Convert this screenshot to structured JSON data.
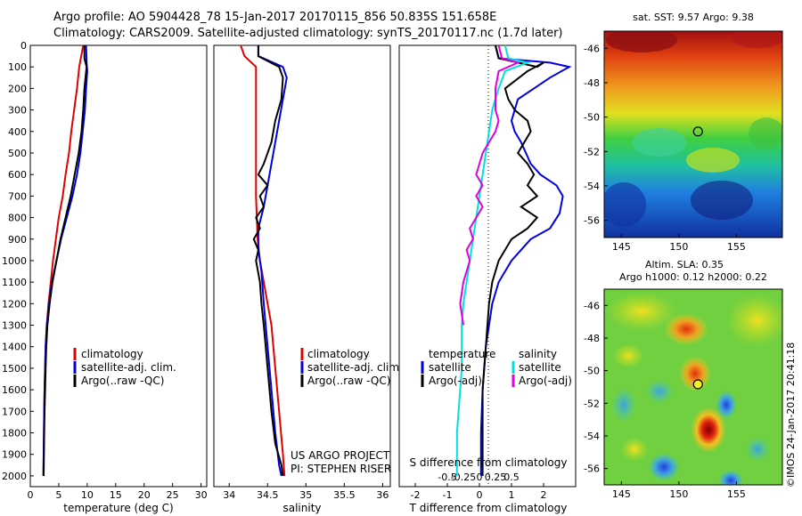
{
  "header": {
    "line1": "Argo profile: AO 5904428_78 15-Jan-2017 20170115_856 50.835S 151.658E",
    "line2": "Climatology: CARS2009. Satellite-adjusted climatology: synTS_20170117.nc (1.7d later)"
  },
  "footer": {
    "project": "US ARGO PROJECT",
    "pi": "PI: STEPHEN RISER",
    "stamp": "©IMOS 24-Jan-2017 20:41:18"
  },
  "colors": {
    "climatology": "#e00000",
    "satellite": "#0000e0",
    "argo": "#000000",
    "salinity_diff": "#00e0e0",
    "salinity_argo": "#e000e0"
  },
  "chart_data": [
    {
      "id": "temp",
      "type": "line",
      "xlabel": "temperature (deg C)",
      "ylabel": "",
      "xlim": [
        0,
        31
      ],
      "ylim": [
        0,
        2050
      ],
      "y_reversed": true,
      "xticks": [
        0,
        5,
        10,
        15,
        20,
        25,
        30
      ],
      "yticks": [
        0,
        100,
        200,
        300,
        400,
        500,
        600,
        700,
        800,
        900,
        1000,
        1100,
        1200,
        1300,
        1400,
        1500,
        1600,
        1700,
        1800,
        1900,
        2000
      ],
      "legend": {
        "placement": "center-left",
        "entries": [
          "climatology",
          "satellite-adj. clim.",
          "Argo(..raw -QC)"
        ]
      },
      "series": [
        {
          "name": "climatology",
          "color": "#e00000",
          "points": [
            [
              9.3,
              0
            ],
            [
              8.6,
              100
            ],
            [
              8.2,
              200
            ],
            [
              7.7,
              300
            ],
            [
              7.2,
              400
            ],
            [
              6.8,
              500
            ],
            [
              6.2,
              600
            ],
            [
              5.7,
              700
            ],
            [
              5.0,
              800
            ],
            [
              4.5,
              900
            ],
            [
              4.0,
              1000
            ],
            [
              3.6,
              1100
            ],
            [
              3.2,
              1200
            ],
            [
              2.9,
              1300
            ],
            [
              2.7,
              1400
            ],
            [
              2.6,
              1500
            ],
            [
              2.5,
              1600
            ],
            [
              2.45,
              1700
            ],
            [
              2.4,
              1800
            ],
            [
              2.35,
              1900
            ],
            [
              2.3,
              2000
            ]
          ]
        },
        {
          "name": "satellite-adj. clim.",
          "color": "#0000e0",
          "points": [
            [
              9.8,
              0
            ],
            [
              9.9,
              80
            ],
            [
              10.0,
              120
            ],
            [
              9.8,
              200
            ],
            [
              9.6,
              300
            ],
            [
              9.2,
              400
            ],
            [
              8.8,
              500
            ],
            [
              8.2,
              600
            ],
            [
              7.4,
              700
            ],
            [
              6.4,
              800
            ],
            [
              5.4,
              900
            ],
            [
              4.6,
              1000
            ],
            [
              3.8,
              1100
            ],
            [
              3.3,
              1200
            ],
            [
              2.9,
              1300
            ],
            [
              2.7,
              1400
            ],
            [
              2.6,
              1500
            ],
            [
              2.5,
              1600
            ],
            [
              2.45,
              1700
            ],
            [
              2.4,
              1800
            ],
            [
              2.35,
              1900
            ],
            [
              2.3,
              2000
            ]
          ]
        },
        {
          "name": "Argo(..raw -QC)",
          "color": "#000000",
          "points": [
            [
              9.5,
              0
            ],
            [
              9.5,
              60
            ],
            [
              9.9,
              100
            ],
            [
              9.5,
              200
            ],
            [
              9.3,
              300
            ],
            [
              9.0,
              400
            ],
            [
              8.5,
              500
            ],
            [
              7.8,
              600
            ],
            [
              7.1,
              700
            ],
            [
              6.2,
              800
            ],
            [
              5.3,
              900
            ],
            [
              4.6,
              1000
            ],
            [
              3.9,
              1100
            ],
            [
              3.4,
              1200
            ],
            [
              3.0,
              1300
            ],
            [
              2.8,
              1400
            ],
            [
              2.7,
              1500
            ],
            [
              2.6,
              1600
            ],
            [
              2.5,
              1700
            ],
            [
              2.45,
              1800
            ],
            [
              2.4,
              1900
            ],
            [
              2.35,
              2000
            ]
          ]
        }
      ]
    },
    {
      "id": "salt",
      "type": "line",
      "xlabel": "salinity",
      "ylabel": "",
      "xlim": [
        33.8,
        36.1
      ],
      "ylim": [
        0,
        2050
      ],
      "y_reversed": true,
      "xticks": [
        34,
        34.5,
        35,
        35.5,
        36
      ],
      "legend": {
        "placement": "center-right",
        "entries": [
          "climatology",
          "satellite-adj. clim.",
          "Argo(..raw -QC)"
        ]
      },
      "series": [
        {
          "name": "climatology",
          "color": "#e00000",
          "points": [
            [
              34.15,
              0
            ],
            [
              34.2,
              50
            ],
            [
              34.35,
              100
            ],
            [
              34.35,
              300
            ],
            [
              34.35,
              700
            ],
            [
              34.37,
              900
            ],
            [
              34.4,
              1000
            ],
            [
              34.45,
              1100
            ],
            [
              34.55,
              1300
            ],
            [
              34.6,
              1500
            ],
            [
              34.65,
              1700
            ],
            [
              34.7,
              1900
            ],
            [
              34.72,
              2000
            ]
          ]
        },
        {
          "name": "satellite-adj. clim.",
          "color": "#0000e0",
          "points": [
            [
              34.38,
              0
            ],
            [
              34.38,
              50
            ],
            [
              34.7,
              100
            ],
            [
              34.75,
              150
            ],
            [
              34.7,
              250
            ],
            [
              34.65,
              350
            ],
            [
              34.6,
              450
            ],
            [
              34.55,
              550
            ],
            [
              34.5,
              650
            ],
            [
              34.45,
              750
            ],
            [
              34.38,
              850
            ],
            [
              34.38,
              950
            ],
            [
              34.42,
              1050
            ],
            [
              34.45,
              1200
            ],
            [
              34.5,
              1400
            ],
            [
              34.55,
              1600
            ],
            [
              34.6,
              1800
            ],
            [
              34.65,
              1950
            ],
            [
              34.68,
              2000
            ]
          ]
        },
        {
          "name": "Argo(..raw -QC)",
          "color": "#000000",
          "points": [
            [
              34.38,
              0
            ],
            [
              34.38,
              50
            ],
            [
              34.65,
              100
            ],
            [
              34.7,
              150
            ],
            [
              34.68,
              250
            ],
            [
              34.6,
              350
            ],
            [
              34.55,
              450
            ],
            [
              34.45,
              550
            ],
            [
              34.38,
              600
            ],
            [
              34.5,
              650
            ],
            [
              34.4,
              700
            ],
            [
              34.45,
              750
            ],
            [
              34.35,
              800
            ],
            [
              34.4,
              850
            ],
            [
              34.32,
              900
            ],
            [
              34.38,
              950
            ],
            [
              34.35,
              1000
            ],
            [
              34.4,
              1100
            ],
            [
              34.42,
              1200
            ],
            [
              34.45,
              1300
            ],
            [
              34.5,
              1500
            ],
            [
              34.55,
              1700
            ],
            [
              34.6,
              1850
            ],
            [
              34.68,
              1950
            ],
            [
              34.7,
              2000
            ]
          ]
        }
      ]
    },
    {
      "id": "diff",
      "type": "line",
      "xlabel": "T difference from climatology",
      "x2label": "S difference from climatology",
      "ylabel": "",
      "xlim": [
        -2.5,
        3
      ],
      "ylim": [
        0,
        2050
      ],
      "y_reversed": true,
      "xticks": [
        -2,
        -1,
        0,
        1,
        2
      ],
      "x2ticks": [
        {
          "label": "-0.5",
          "x": -1
        },
        {
          "label": "-0.25",
          "x": -0.5
        },
        {
          "label": "0",
          "x": 0
        },
        {
          "label": "0.25",
          "x": 0.5
        },
        {
          "label": "0.5",
          "x": 1
        }
      ],
      "legend": {
        "placement": "center",
        "temperature_title": "temperature",
        "salinity_title": "salinity",
        "entries": [
          "satellite",
          "Argo(-adj)",
          "satellite",
          "Argo(-adj)"
        ]
      },
      "series": [
        {
          "name": "satellite",
          "group": "temperature",
          "color": "#0000e0",
          "points": [
            [
              0.5,
              0
            ],
            [
              0.6,
              60
            ],
            [
              2.2,
              80
            ],
            [
              2.8,
              100
            ],
            [
              2.2,
              150
            ],
            [
              1.2,
              250
            ],
            [
              1.0,
              350
            ],
            [
              1.1,
              400
            ],
            [
              1.3,
              450
            ],
            [
              1.6,
              550
            ],
            [
              1.9,
              600
            ],
            [
              2.4,
              650
            ],
            [
              2.6,
              700
            ],
            [
              2.5,
              780
            ],
            [
              2.2,
              850
            ],
            [
              1.6,
              900
            ],
            [
              1.0,
              1000
            ],
            [
              0.6,
              1100
            ],
            [
              0.4,
              1200
            ],
            [
              0.2,
              1400
            ],
            [
              0.1,
              1600
            ],
            [
              0.05,
              1800
            ],
            [
              0.05,
              2000
            ]
          ]
        },
        {
          "name": "Argo(-adj)",
          "group": "temperature",
          "color": "#000000",
          "points": [
            [
              0.5,
              0
            ],
            [
              0.6,
              60
            ],
            [
              1.8,
              100
            ],
            [
              2.0,
              80
            ],
            [
              1.5,
              120
            ],
            [
              0.8,
              200
            ],
            [
              0.9,
              250
            ],
            [
              1.1,
              300
            ],
            [
              1.5,
              350
            ],
            [
              1.6,
              400
            ],
            [
              1.2,
              500
            ],
            [
              1.5,
              550
            ],
            [
              1.7,
              600
            ],
            [
              1.5,
              650
            ],
            [
              1.8,
              700
            ],
            [
              1.3,
              750
            ],
            [
              1.8,
              800
            ],
            [
              1.5,
              850
            ],
            [
              1.0,
              900
            ],
            [
              0.6,
              1000
            ],
            [
              0.4,
              1100
            ],
            [
              0.3,
              1200
            ],
            [
              0.2,
              1400
            ],
            [
              0.1,
              1600
            ],
            [
              0.1,
              1800
            ],
            [
              0.1,
              2000
            ]
          ]
        },
        {
          "name": "satellite",
          "group": "salinity",
          "color": "#00e0e0",
          "points": [
            [
              0.8,
              0
            ],
            [
              0.9,
              60
            ],
            [
              1.5,
              80
            ],
            [
              0.8,
              120
            ],
            [
              0.6,
              200
            ],
            [
              0.4,
              300
            ],
            [
              0.3,
              400
            ],
            [
              0.2,
              500
            ],
            [
              0.1,
              600
            ],
            [
              0.0,
              700
            ],
            [
              -0.1,
              800
            ],
            [
              -0.2,
              900
            ],
            [
              -0.3,
              1000
            ],
            [
              -0.4,
              1100
            ],
            [
              -0.5,
              1200
            ],
            [
              -0.55,
              1300
            ],
            [
              -0.55,
              1400
            ],
            [
              -0.55,
              1500
            ],
            [
              -0.6,
              1600
            ],
            [
              -0.65,
              1700
            ],
            [
              -0.7,
              1800
            ],
            [
              -0.7,
              1900
            ],
            [
              -0.7,
              2000
            ]
          ]
        },
        {
          "name": "Argo(-adj)",
          "group": "salinity",
          "color": "#e000e0",
          "points": [
            [
              0.6,
              0
            ],
            [
              0.7,
              60
            ],
            [
              1.2,
              80
            ],
            [
              0.6,
              120
            ],
            [
              0.5,
              200
            ],
            [
              0.5,
              300
            ],
            [
              0.6,
              350
            ],
            [
              0.5,
              400
            ],
            [
              0.3,
              450
            ],
            [
              0.1,
              500
            ],
            [
              0.0,
              550
            ],
            [
              -0.1,
              600
            ],
            [
              0.1,
              650
            ],
            [
              -0.1,
              700
            ],
            [
              0.1,
              750
            ],
            [
              -0.1,
              800
            ],
            [
              -0.3,
              850
            ],
            [
              -0.2,
              900
            ],
            [
              -0.4,
              950
            ],
            [
              -0.3,
              1000
            ],
            [
              -0.4,
              1050
            ],
            [
              -0.5,
              1100
            ],
            [
              -0.6,
              1200
            ],
            [
              -0.5,
              1300
            ]
          ]
        }
      ]
    }
  ],
  "maps": [
    {
      "id": "sst",
      "title": "sat. SST: 9.57  Argo: 9.38",
      "xlim": [
        143.5,
        159
      ],
      "ylim": [
        -57,
        -45
      ],
      "xticks": [
        145,
        150,
        155
      ],
      "yticks": [
        -46,
        -48,
        -50,
        -52,
        -54,
        -56
      ],
      "marker": {
        "lon": 151.658,
        "lat": -50.835
      }
    },
    {
      "id": "sla",
      "title": "Altim. SLA: 0.35",
      "subtitle": "Argo h1000: 0.12 h2000: 0.22",
      "xlim": [
        143.5,
        159
      ],
      "ylim": [
        -57,
        -45
      ],
      "xticks": [
        145,
        150,
        155
      ],
      "yticks": [
        -46,
        -48,
        -50,
        -52,
        -54,
        -56
      ],
      "marker": {
        "lon": 151.658,
        "lat": -50.835
      }
    }
  ]
}
